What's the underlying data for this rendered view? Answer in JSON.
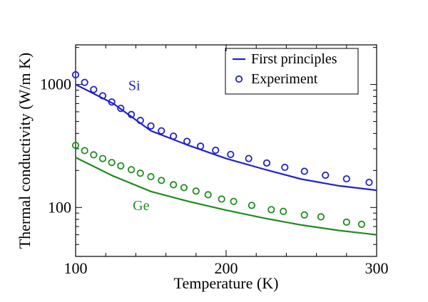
{
  "chart_data": {
    "type": "line",
    "title": "",
    "xlabel": "Temperature (K)",
    "ylabel": "Thermal conductivity (W/m K)",
    "xlim": [
      100,
      300
    ],
    "ylim": [
      40,
      2100
    ],
    "yscale": "log",
    "grid": false,
    "legend_position": "top-right",
    "x_ticks": [
      100,
      200,
      300
    ],
    "x_tick_labels": [
      "100",
      "200",
      "300"
    ],
    "y_ticks": [
      100,
      1000
    ],
    "y_tick_labels": [
      "100",
      "1000"
    ],
    "legend": [
      {
        "label": "First principles",
        "marker": "line",
        "color": "#1f1fd1"
      },
      {
        "label": "Experiment",
        "marker": "circle",
        "color": "#1f1fd1"
      }
    ],
    "series": [
      {
        "material": "Si",
        "kind": "line",
        "legend_label": "First principles",
        "color": "#1f1fd1",
        "x": [
          100,
          125,
          150,
          175,
          200,
          225,
          250,
          275,
          300
        ],
        "y": [
          1000,
          700,
          420,
          320,
          250,
          205,
          170,
          150,
          138
        ]
      },
      {
        "material": "Si",
        "kind": "scatter",
        "legend_label": "Experiment",
        "color": "#1f1fd1",
        "x": [
          100,
          106,
          112,
          118,
          124,
          130,
          137,
          143,
          150,
          157,
          165,
          174,
          183,
          193,
          203,
          215,
          227,
          239,
          252,
          266,
          280,
          295
        ],
        "y": [
          1200,
          1040,
          910,
          810,
          720,
          640,
          570,
          510,
          460,
          420,
          380,
          345,
          315,
          292,
          270,
          250,
          230,
          212,
          197,
          183,
          171,
          160
        ]
      },
      {
        "material": "Ge",
        "kind": "line",
        "color": "#1e8c1e",
        "x": [
          100,
          125,
          150,
          175,
          200,
          225,
          250,
          275,
          300
        ],
        "y": [
          255,
          180,
          135,
          112,
          95,
          82,
          72,
          65,
          60
        ]
      },
      {
        "material": "Ge",
        "kind": "scatter",
        "color": "#1e8c1e",
        "x": [
          100,
          106,
          112,
          118,
          124,
          130,
          137,
          143,
          150,
          157,
          165,
          172,
          180,
          188,
          197,
          205,
          217,
          230,
          238,
          252,
          263,
          280,
          290
        ],
        "y": [
          320,
          290,
          268,
          250,
          232,
          218,
          203,
          190,
          178,
          166,
          153,
          145,
          136,
          127,
          117,
          112,
          104,
          96,
          93,
          87,
          84,
          76,
          73
        ]
      }
    ],
    "series_labels": [
      {
        "text": "Si",
        "x": 135,
        "y": 900,
        "color": "#1f1fd1"
      },
      {
        "text": "Ge",
        "x": 138,
        "y": 95,
        "color": "#1e8c1e"
      }
    ]
  }
}
